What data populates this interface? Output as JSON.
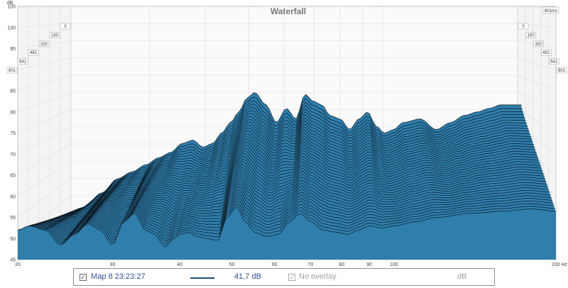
{
  "chart_data": {
    "type": "waterfall",
    "title": "Waterfall",
    "y_unit": "dB",
    "y_ticks": [
      45,
      50,
      55,
      60,
      65,
      70,
      75,
      80,
      85,
      90,
      95,
      100,
      105
    ],
    "ylim": [
      45,
      105
    ],
    "x_unit": "Hz",
    "x_scale": "log",
    "x_ticks": [
      {
        "value": 20,
        "label": "20"
      },
      {
        "value": 30,
        "label": "30"
      },
      {
        "value": 40,
        "label": "40"
      },
      {
        "value": 50,
        "label": "50"
      },
      {
        "value": 60,
        "label": "60"
      },
      {
        "value": 70,
        "label": "70"
      },
      {
        "value": 80,
        "label": "80"
      },
      {
        "value": 90,
        "label": "90"
      },
      {
        "value": 100,
        "label": "100"
      },
      {
        "value": 200,
        "label": "200 Hz"
      }
    ],
    "xlim": [
      20,
      200
    ],
    "time_unit": "ms",
    "time_ticks": [
      "0",
      "160",
      "320",
      "481",
      "641",
      "801"
    ],
    "time_max_label": "801ms",
    "fill_color": "#2f7eac",
    "line_color": "#0d1a24",
    "slice_count": 40,
    "front_curve": {
      "x": [
        20,
        21,
        22.5,
        24,
        25.5,
        27,
        28.5,
        30,
        31.5,
        33,
        34.5,
        36,
        37.5,
        39,
        40,
        41.5,
        43,
        45,
        47,
        49,
        51,
        53,
        55,
        58,
        61,
        64,
        67,
        70,
        74,
        78,
        82,
        86,
        90,
        95,
        100,
        110,
        120,
        140,
        160,
        180,
        200
      ],
      "y": [
        52,
        53,
        52,
        48.5,
        51,
        53.5,
        52,
        48.5,
        54,
        56,
        52,
        51,
        48,
        50,
        51,
        51.5,
        50.5,
        50,
        49.5,
        55,
        57.5,
        54,
        51.5,
        50.5,
        51,
        54,
        56,
        54,
        52,
        51.5,
        51,
        52,
        53,
        52.5,
        53,
        54,
        55,
        56,
        56.5,
        57,
        56.5
      ]
    },
    "back_curve": {
      "x": [
        20,
        22,
        24,
        26,
        28,
        30,
        32,
        34,
        36,
        38,
        40,
        42,
        44,
        46,
        48,
        50,
        52,
        55,
        58,
        61,
        64,
        67,
        70,
        73,
        76,
        80,
        84,
        88,
        92,
        96,
        100,
        105,
        110,
        120,
        130,
        140,
        150,
        160,
        170,
        180,
        190,
        200
      ],
      "y": [
        45,
        48,
        52,
        56,
        58,
        60,
        62,
        63.5,
        66,
        67,
        65,
        66,
        69,
        72,
        75,
        79,
        80.5,
        77,
        72,
        76,
        73,
        80,
        78,
        77,
        74,
        73,
        70,
        73,
        75,
        71,
        69,
        70,
        72,
        73,
        70,
        72,
        74,
        75,
        76,
        77,
        77,
        77
      ]
    }
  },
  "status_bar": {
    "measurement_checked": true,
    "measurement_label": "Мар 8 23:23:27",
    "level": "41,7 dB",
    "overlay_checked": true,
    "overlay_label": "No overlay",
    "overlay_unit": "dB"
  }
}
